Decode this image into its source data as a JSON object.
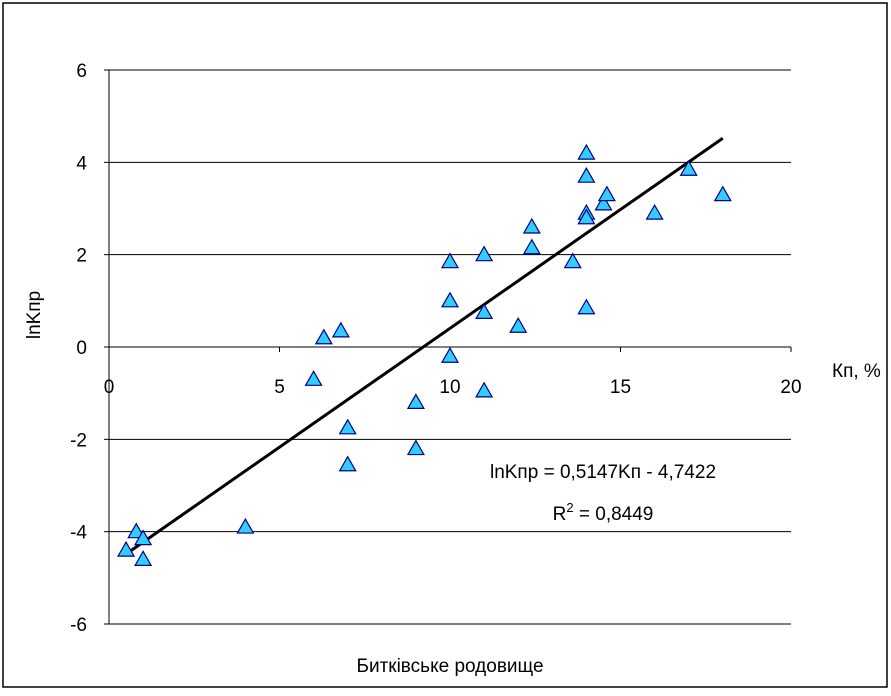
{
  "chart_data": {
    "type": "scatter",
    "title": "",
    "xlabel": "Кп, %",
    "ylabel": "lnKпр",
    "caption": "Битківське родовище",
    "xlim": [
      0,
      20
    ],
    "ylim": [
      -6,
      6
    ],
    "x_ticks": [
      "0",
      "5",
      "10",
      "15",
      "20"
    ],
    "y_ticks": [
      "-6",
      "-4",
      "-2",
      "0",
      "2",
      "4",
      "6"
    ],
    "grid": "horizontal",
    "legend": "none",
    "marker": {
      "shape": "triangle",
      "fill": "#33ccff",
      "stroke": "#000080"
    },
    "points": [
      {
        "x": 0.5,
        "y": -4.4
      },
      {
        "x": 0.8,
        "y": -4.0
      },
      {
        "x": 1.0,
        "y": -4.15
      },
      {
        "x": 1.0,
        "y": -4.6
      },
      {
        "x": 4.0,
        "y": -3.9
      },
      {
        "x": 6.0,
        "y": -0.7
      },
      {
        "x": 6.3,
        "y": 0.2
      },
      {
        "x": 6.8,
        "y": 0.35
      },
      {
        "x": 7.0,
        "y": -1.75
      },
      {
        "x": 7.0,
        "y": -2.55
      },
      {
        "x": 9.0,
        "y": -1.2
      },
      {
        "x": 9.0,
        "y": -2.2
      },
      {
        "x": 10.0,
        "y": 1.85
      },
      {
        "x": 10.0,
        "y": 1.0
      },
      {
        "x": 10.0,
        "y": -0.2
      },
      {
        "x": 11.0,
        "y": 2.0
      },
      {
        "x": 11.0,
        "y": 0.75
      },
      {
        "x": 11.0,
        "y": -0.95
      },
      {
        "x": 12.0,
        "y": 0.45
      },
      {
        "x": 12.4,
        "y": 2.6
      },
      {
        "x": 12.4,
        "y": 2.15
      },
      {
        "x": 13.6,
        "y": 1.85
      },
      {
        "x": 14.0,
        "y": 4.2
      },
      {
        "x": 14.0,
        "y": 3.7
      },
      {
        "x": 14.0,
        "y": 2.9
      },
      {
        "x": 14.0,
        "y": 2.8
      },
      {
        "x": 14.0,
        "y": 0.85
      },
      {
        "x": 14.5,
        "y": 3.1
      },
      {
        "x": 14.6,
        "y": 3.3
      },
      {
        "x": 16.0,
        "y": 2.9
      },
      {
        "x": 17.0,
        "y": 3.85
      },
      {
        "x": 18.0,
        "y": 3.3
      }
    ],
    "trendline": {
      "slope": 0.5147,
      "intercept": -4.7422,
      "x_range": [
        0.5,
        18.0
      ],
      "equation": "lnKпр = 0,5147Kп - 4,7422",
      "r2": "R2 = 0,8449"
    }
  }
}
